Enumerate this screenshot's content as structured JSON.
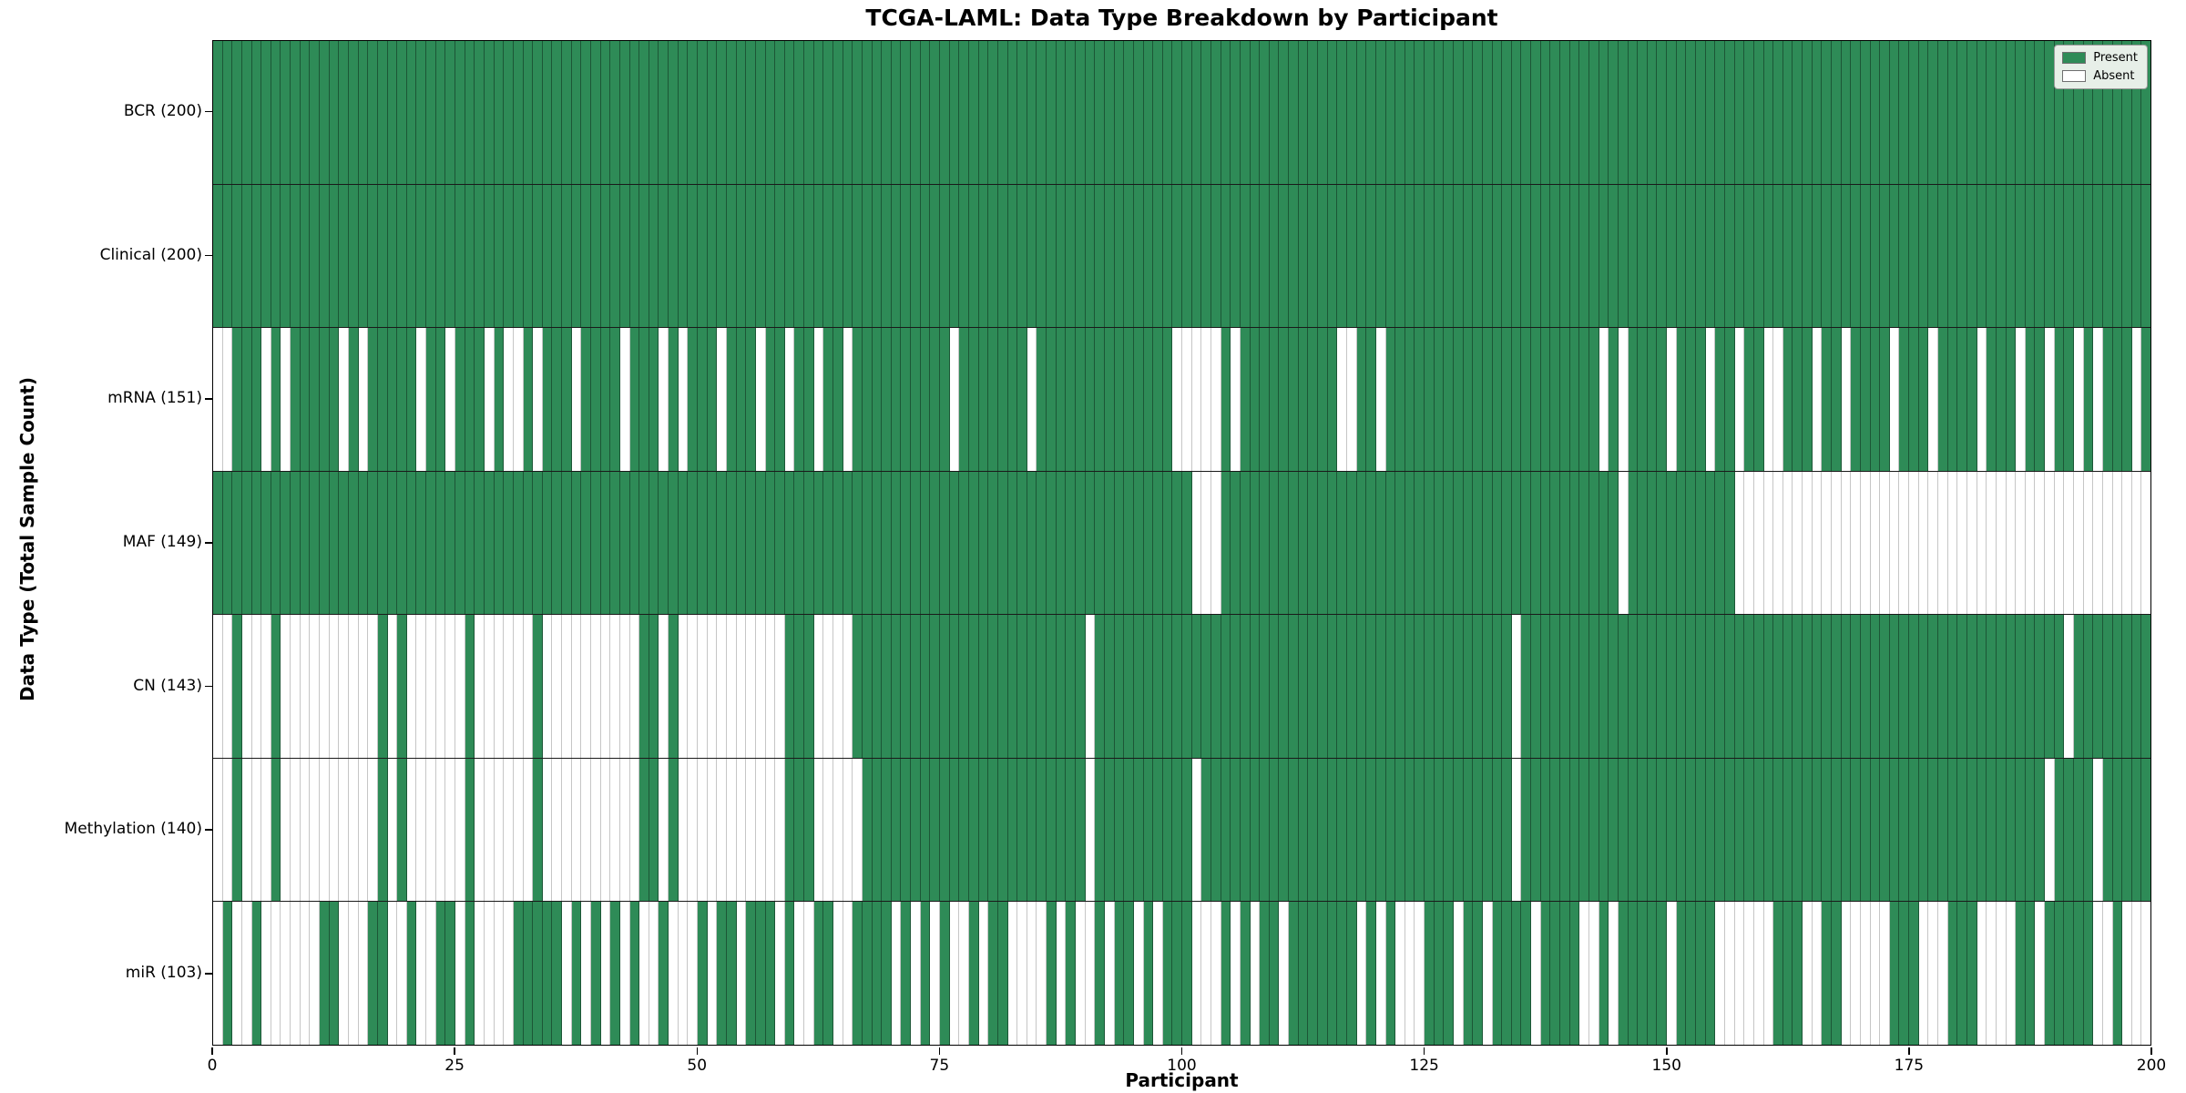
{
  "chart_data": {
    "type": "heatmap",
    "title": "TCGA-LAML: Data Type Breakdown by Participant",
    "xlabel": "Participant",
    "ylabel": "Data Type (Total Sample Count)",
    "participants": 200,
    "x_ticks": [
      0,
      25,
      50,
      75,
      100,
      125,
      150,
      175,
      200
    ],
    "x_range": [
      0,
      200
    ],
    "grid": false,
    "legend_position": "upper right",
    "legend": [
      {
        "label": "Present",
        "color": "#2e8b57"
      },
      {
        "label": "Absent",
        "color": "#ffffff"
      }
    ],
    "colors": {
      "present": "#2e8b57",
      "absent": "#ffffff",
      "legend_bg": "#e7efe8"
    },
    "rows": [
      {
        "name": "BCR",
        "total": 200,
        "pattern": "11111111111111111111111111111111111111111111111111111111111111111111111111111111111111111111111111111111111111111111111111111111111111111111111111111111111111111111111111111111111111111111111111111111"
      },
      {
        "name": "Clinical",
        "total": 200,
        "pattern": "11111111111111111111111111111111111111111111111111111111111111111111111111111111111111111111111111111111111111111111111111111111111111111111111111111111111111111111111111111111111111111111111111111111"
      },
      {
        "name": "mRNA",
        "total": 151,
        "pattern": "00111010111110101111101101110100101110111101110101110111011011011011111111110111111101111111111111100000101111111111001101111111111111111111111010111101110110110011101101111011101111011101101101011101 11"
      },
      {
        "name": "MAF",
        "total": 149,
        "pattern": "11111111111111111111111111111111111111111111111111111111111111111111111111111111111111111111111111111000111111111111111111111111111111111111111110111111111110000000000000000000000000000000000000000000"
      },
      {
        "name": "CN",
        "total": 143,
        "pattern": "00100010000000000101000000100000010000000000110100000000000111000011111111111111111111111101111111111111111111111111111111111111111111011111111111111111111111111111111111111111111111111111111011111111"
      },
      {
        "name": "Methylation",
        "total": 140,
        "pattern": "00100010000000000101000000100000010000000000110100000000000111000001111111111111111111111101111111111011111111111111111111111111111111011111111111111111111111111111111111111111111111111111101111011111 111"
      },
      {
        "name": "miR",
        "total": 103,
        "pattern": "01001000000110001100100110100001111101010101001000101101110100110011110101010010110000101001011010111000101011011111110101000111011011110111100101111101111000000111001100000111000111000011011111001000"
      }
    ]
  }
}
